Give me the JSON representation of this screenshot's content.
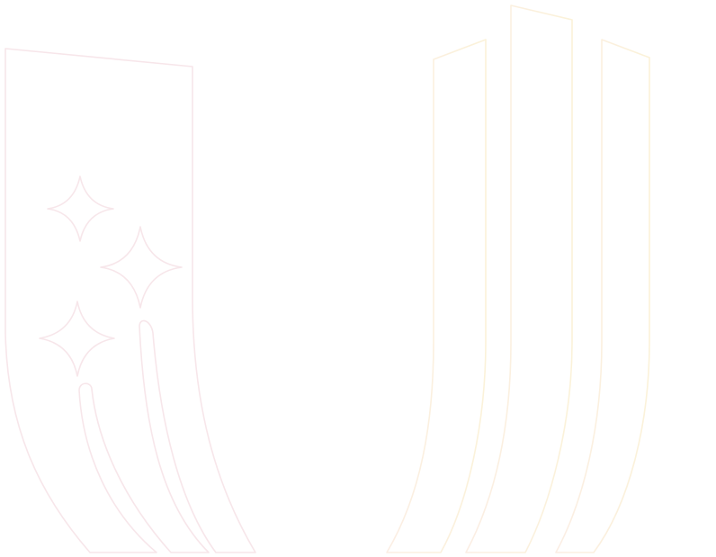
{
  "illustration": {
    "left_figure": {
      "icon": "banner-with-sparkles-icon",
      "color": "#f7e6ea"
    },
    "right_figure": {
      "icon": "three-vertical-ribbons-icon",
      "gradient": [
        "#fbeee4",
        "#fbf2d9"
      ]
    }
  }
}
